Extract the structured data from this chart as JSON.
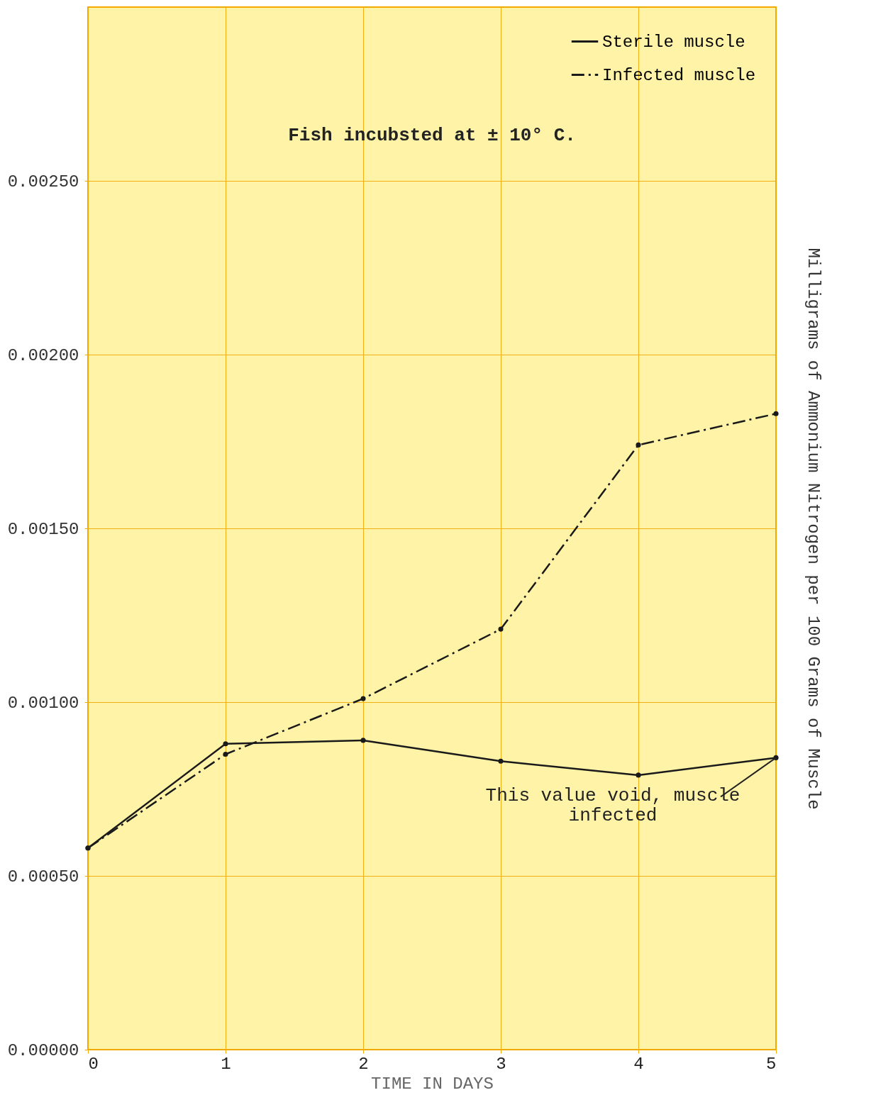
{
  "chart_data": {
    "type": "line",
    "xlabel": "TIME IN DAYS",
    "ylabel": "Milligrams of Ammonium Nitrogen per 100 Grams of Muscle",
    "x": [
      0,
      1,
      2,
      3,
      4,
      5
    ],
    "series": [
      {
        "name": "Sterile muscle",
        "color": "#1a1a1a",
        "line_style": "solid",
        "values": [
          0.00058,
          0.00088,
          0.00089,
          0.00083,
          0.00079,
          0.00084
        ]
      },
      {
        "name": "Infected muscle",
        "color": "#1a1a1a",
        "line_style": "dashed",
        "values": [
          0.00058,
          0.00085,
          0.00101,
          0.00121,
          0.00174,
          0.00183
        ]
      }
    ],
    "xlim": [
      0,
      5
    ],
    "xticks": [
      0,
      1,
      2,
      3,
      4,
      5
    ],
    "ylim": [
      0,
      0.003
    ],
    "yticks": [
      {
        "value": 0,
        "label": "0.00000"
      },
      {
        "value": 0.0005,
        "label": "0.00050"
      },
      {
        "value": 0.001,
        "label": "0.00100"
      },
      {
        "value": 0.0015,
        "label": "0.00150"
      },
      {
        "value": 0.002,
        "label": "0.00200"
      },
      {
        "value": 0.0025,
        "label": "0.00250"
      }
    ],
    "annotations": [
      "Fish incubsted at ± 10° C.",
      {
        "text": "This value void, muscle\ninfected",
        "x": 5,
        "y": 0.00084
      }
    ],
    "grid": true,
    "legend": "top right",
    "marker": "circle"
  }
}
